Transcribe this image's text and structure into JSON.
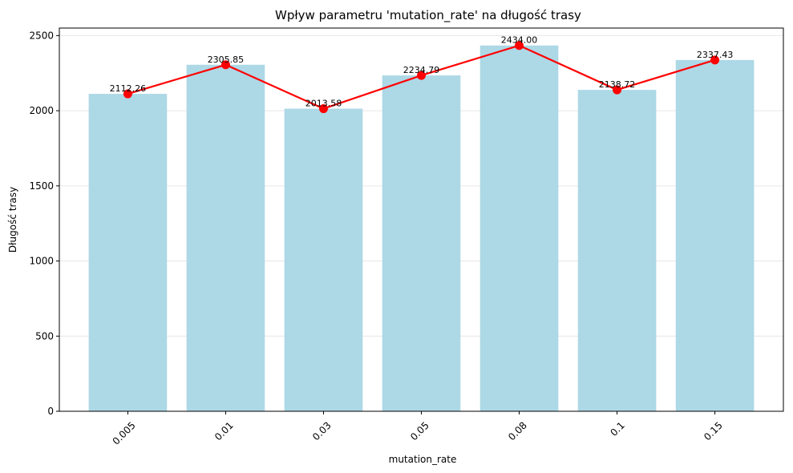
{
  "chart_data": {
    "type": "bar",
    "title": "Wpływ parametru 'mutation_rate' na długość trasy",
    "xlabel": "mutation_rate",
    "ylabel": "Długość trasy",
    "categories": [
      "0.005",
      "0.01",
      "0.03",
      "0.05",
      "0.08",
      "0.1",
      "0.15"
    ],
    "values": [
      2112.26,
      2305.85,
      2013.58,
      2234.79,
      2434.0,
      2138.72,
      2337.43
    ],
    "data_labels": [
      "2112.26",
      "2305.85",
      "2013.58",
      "2234.79",
      "2434.00",
      "2138.72",
      "2337.43"
    ],
    "ylim": [
      0,
      2550
    ],
    "yticks": [
      0,
      500,
      1000,
      1500,
      2000,
      2500
    ],
    "grid": "horizontal",
    "x_tick_rotation_deg": 45,
    "overlay_line": true,
    "colors": {
      "bar": "#add8e6",
      "line": "#ff0000",
      "marker": "#ff0000",
      "grid": "#e6e6e6",
      "axes": "#000000"
    }
  }
}
